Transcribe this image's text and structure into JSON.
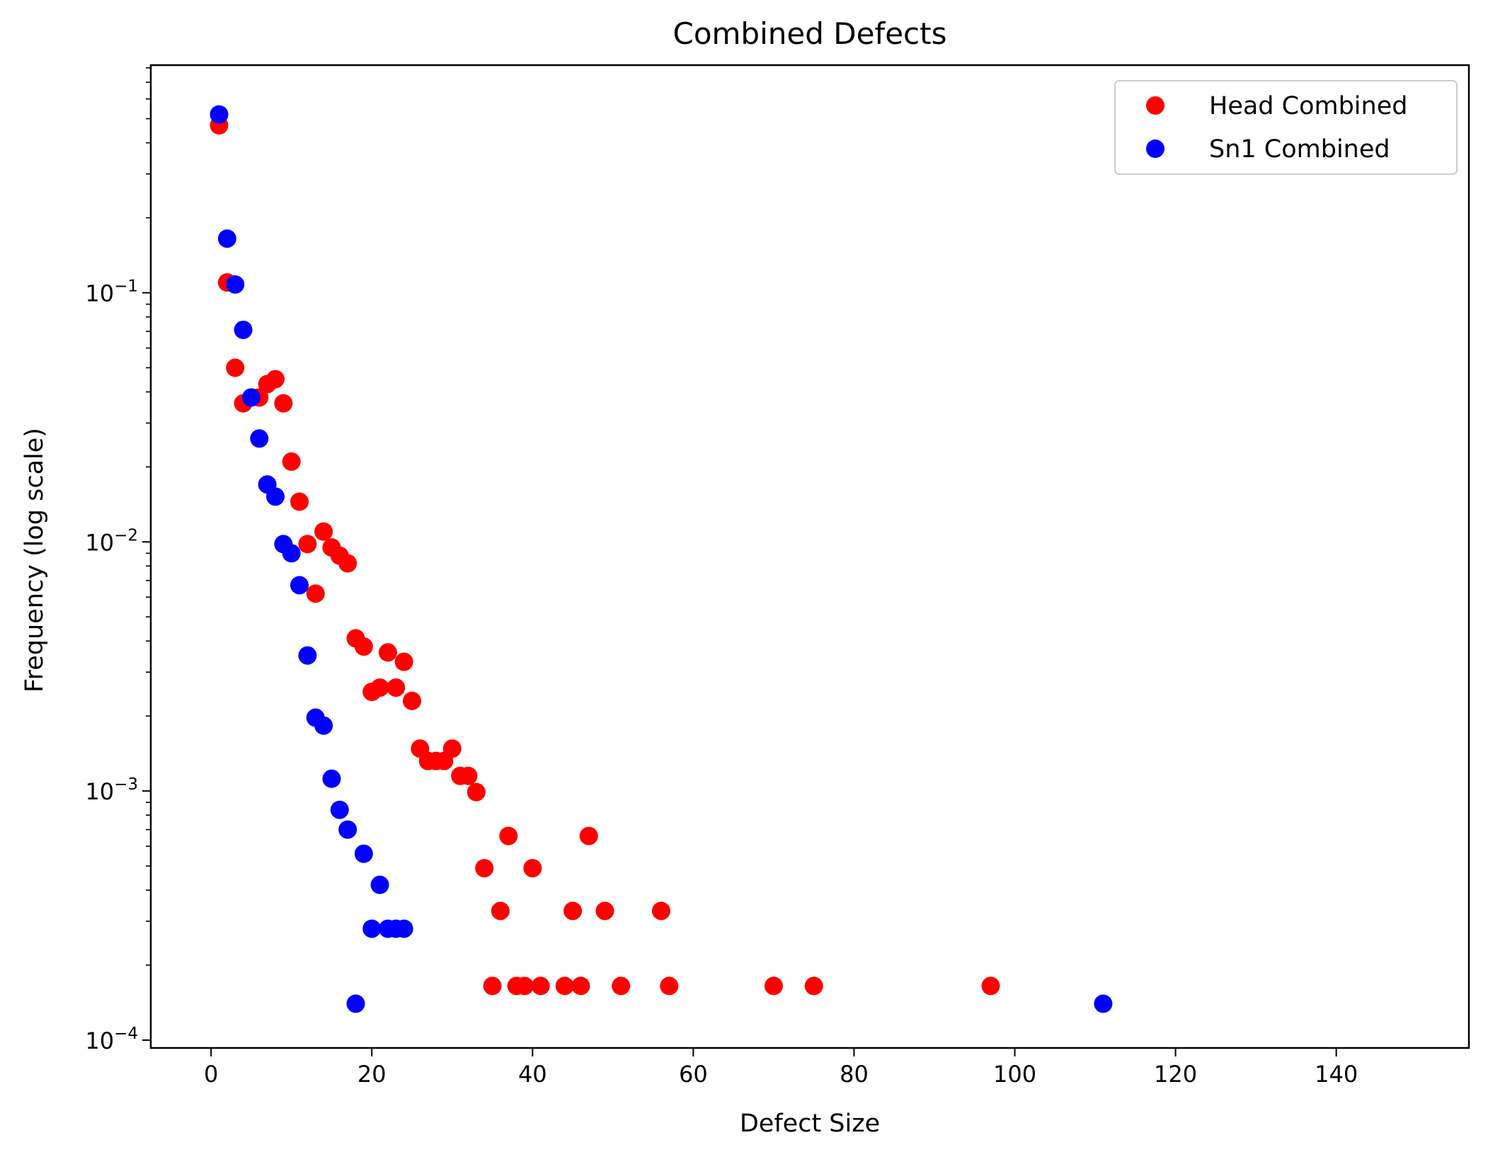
{
  "chart_data": {
    "type": "scatter",
    "title": "Combined Defects",
    "xlabel": "Defect Size",
    "ylabel": "Frequency (log scale)",
    "xlim": [
      -7.5,
      156.5
    ],
    "ylim": [
      9.3e-05,
      0.82
    ],
    "yscale": "log",
    "grid": false,
    "legend_position": "top-right",
    "x_ticks": [
      0,
      20,
      40,
      60,
      80,
      100,
      120,
      140
    ],
    "x_tick_labels": [
      "0",
      "20",
      "40",
      "60",
      "80",
      "100",
      "120",
      "140"
    ],
    "y_ticks": [
      0.1,
      0.01,
      0.001,
      0.0001
    ],
    "y_tick_labels": [
      {
        "base": "10",
        "exp": "−1"
      },
      {
        "base": "10",
        "exp": "−2"
      },
      {
        "base": "10",
        "exp": "−3"
      },
      {
        "base": "10",
        "exp": "−4"
      }
    ],
    "series": [
      {
        "name": "Head Combined",
        "color": "#ff0000",
        "points": [
          [
            1,
            0.47
          ],
          [
            2,
            0.11
          ],
          [
            3,
            0.05
          ],
          [
            4,
            0.036
          ],
          [
            6,
            0.038
          ],
          [
            7,
            0.043
          ],
          [
            8,
            0.045
          ],
          [
            9,
            0.036
          ],
          [
            10,
            0.021
          ],
          [
            11,
            0.0145
          ],
          [
            12,
            0.0098
          ],
          [
            13,
            0.0062
          ],
          [
            14,
            0.011
          ],
          [
            15,
            0.0095
          ],
          [
            16,
            0.0088
          ],
          [
            17,
            0.0082
          ],
          [
            18,
            0.0041
          ],
          [
            19,
            0.0038
          ],
          [
            20,
            0.0025
          ],
          [
            21,
            0.0026
          ],
          [
            22,
            0.0036
          ],
          [
            23,
            0.0026
          ],
          [
            24,
            0.0033
          ],
          [
            25,
            0.0023
          ],
          [
            26,
            0.00148
          ],
          [
            27,
            0.00132
          ],
          [
            28,
            0.00132
          ],
          [
            29,
            0.00132
          ],
          [
            30,
            0.00148
          ],
          [
            31,
            0.00115
          ],
          [
            32,
            0.00115
          ],
          [
            33,
            0.00099
          ],
          [
            34,
            0.00049
          ],
          [
            35,
            0.000165
          ],
          [
            36,
            0.00033
          ],
          [
            37,
            0.00066
          ],
          [
            38,
            0.000165
          ],
          [
            39,
            0.000165
          ],
          [
            40,
            0.00049
          ],
          [
            41,
            0.000165
          ],
          [
            44,
            0.000165
          ],
          [
            45,
            0.00033
          ],
          [
            46,
            0.000165
          ],
          [
            47,
            0.00066
          ],
          [
            49,
            0.00033
          ],
          [
            51,
            0.000165
          ],
          [
            56,
            0.00033
          ],
          [
            57,
            0.000165
          ],
          [
            70,
            0.000165
          ],
          [
            75,
            0.000165
          ],
          [
            97,
            0.000165
          ]
        ]
      },
      {
        "name": "Sn1 Combined",
        "color": "#0000ff",
        "points": [
          [
            1,
            0.52
          ],
          [
            2,
            0.165
          ],
          [
            3,
            0.108
          ],
          [
            4,
            0.071
          ],
          [
            5,
            0.038
          ],
          [
            6,
            0.026
          ],
          [
            7,
            0.017
          ],
          [
            8,
            0.0152
          ],
          [
            9,
            0.0098
          ],
          [
            10,
            0.009
          ],
          [
            11,
            0.0067
          ],
          [
            12,
            0.0035
          ],
          [
            13,
            0.00197
          ],
          [
            14,
            0.00183
          ],
          [
            15,
            0.00112
          ],
          [
            16,
            0.00084
          ],
          [
            17,
            0.0007
          ],
          [
            18,
            0.00014
          ],
          [
            19,
            0.00056
          ],
          [
            20,
            0.00028
          ],
          [
            21,
            0.00042
          ],
          [
            22,
            0.00028
          ],
          [
            23,
            0.00028
          ],
          [
            24,
            0.00028
          ],
          [
            111,
            0.00014
          ]
        ]
      }
    ]
  }
}
